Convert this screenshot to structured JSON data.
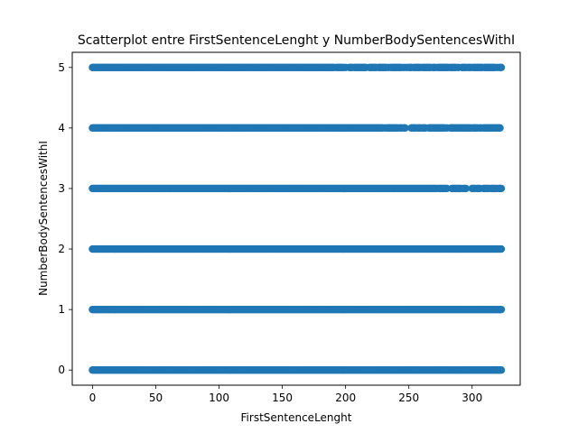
{
  "chart_data": {
    "type": "scatter",
    "title": "Scatterplot entre FirstSentenceLenght y NumberBodySentencesWithI",
    "xlabel": "FirstSentenceLenght",
    "ylabel": "NumberBodySentencesWithI",
    "xlim": [
      -16,
      338
    ],
    "ylim": [
      -0.25,
      5.25
    ],
    "xticks": [
      "0",
      "50",
      "100",
      "150",
      "200",
      "250",
      "300"
    ],
    "xtick_values": [
      0,
      50,
      100,
      150,
      200,
      250,
      300
    ],
    "yticks": [
      "0",
      "1",
      "2",
      "3",
      "4",
      "5"
    ],
    "ytick_values": [
      0,
      1,
      2,
      3,
      4,
      5
    ],
    "grid": false,
    "legend": "none",
    "marker_color": "#1f77b4",
    "series": [
      {
        "rows": [
          {
            "y": 5,
            "x_min": 0,
            "x_max": 323,
            "dense_until": 185
          },
          {
            "y": 4,
            "x_min": 0,
            "x_max": 323,
            "dense_until": 225
          },
          {
            "y": 3,
            "x_min": 0,
            "x_max": 323,
            "dense_until": 270
          },
          {
            "y": 2,
            "x_min": 0,
            "x_max": 323,
            "dense_until": 323
          },
          {
            "y": 1,
            "x_min": 0,
            "x_max": 323,
            "dense_until": 323
          },
          {
            "y": 0,
            "x_min": 0,
            "x_max": 323,
            "dense_until": 323
          }
        ]
      }
    ]
  }
}
